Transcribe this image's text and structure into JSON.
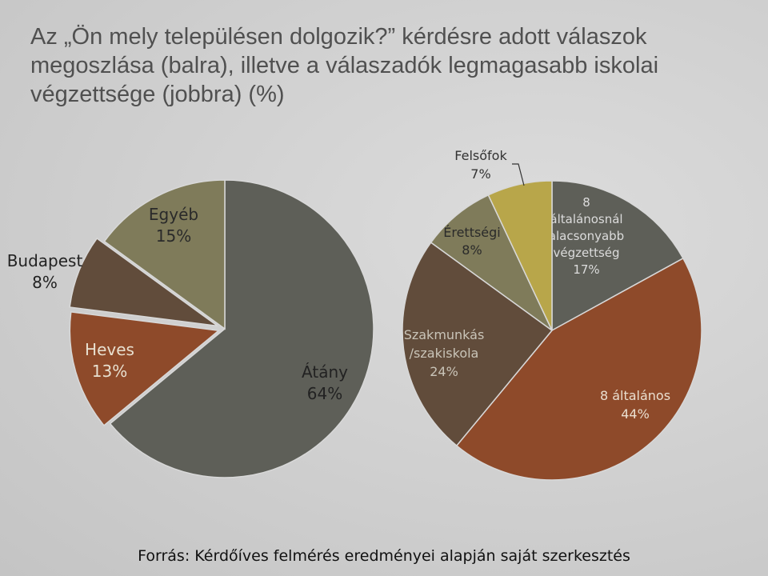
{
  "title": "Az „Ön mely településen dolgozik?” kérdésre adott válaszok megoszlása (balra), illetve a válaszadók legmagasabb iskolai végzettsége (jobbra) (%)",
  "source": "Forrás: Kérdőíves felmérés eredményei alapján saját szerkesztés",
  "chart_data": [
    {
      "type": "pie",
      "title": "",
      "slices": [
        {
          "label": "Átány",
          "value": 64,
          "value_label": "64%",
          "color": "#5e5f58"
        },
        {
          "label": "Heves",
          "value": 13,
          "value_label": "13%",
          "color": "#8e4a2a"
        },
        {
          "label": "Budapest",
          "value": 8,
          "value_label": "8%",
          "color": "#614c3b"
        },
        {
          "label": "Egyéb",
          "value": 15,
          "value_label": "15%",
          "color": "#7f7b5a"
        }
      ]
    },
    {
      "type": "pie",
      "title": "",
      "slices": [
        {
          "label": "8 általánosnál alacsonyabb végzettség",
          "label_lines": [
            "8",
            "általánosnál",
            "alacsonyabb",
            "végzettség"
          ],
          "value": 17,
          "value_label": "17%",
          "color": "#5e5f58"
        },
        {
          "label": "8 általános",
          "label_lines": [
            "8 általános"
          ],
          "value": 44,
          "value_label": "44%",
          "color": "#8e4a2a"
        },
        {
          "label": "Szakmunkás /szakiskola",
          "label_lines": [
            "Szakmunkás",
            "/szakiskola"
          ],
          "value": 24,
          "value_label": "24%",
          "color": "#614c3b"
        },
        {
          "label": "Érettségi",
          "label_lines": [
            "Érettségi"
          ],
          "value": 8,
          "value_label": "8%",
          "color": "#7f7b5a"
        },
        {
          "label": "Felsőfok",
          "label_lines": [
            "Felsőfok"
          ],
          "value": 7,
          "value_label": "7%",
          "color": "#b8a64a"
        }
      ]
    }
  ]
}
